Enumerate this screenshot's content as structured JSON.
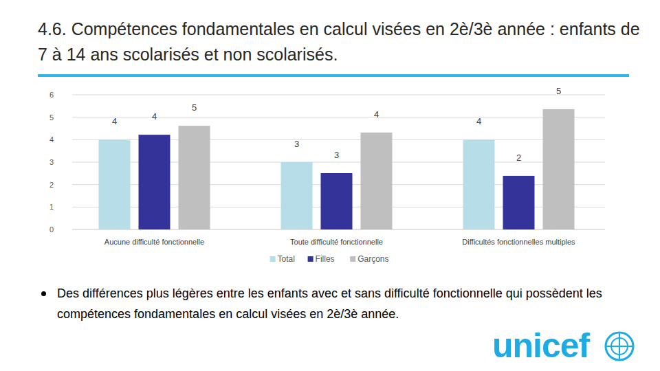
{
  "chart_data": {
    "type": "bar",
    "title": "4.6. Compétences fondamentales en calcul visées en 2è/3è année : enfants de 7 à 14 ans scolarisés et non scolarisés.",
    "categories": [
      "Aucune difficulté fonctionnelle",
      "Toute difficulté fonctionnelle",
      "Difficultés fonctionnelles multiples"
    ],
    "series": [
      {
        "name": "Total",
        "color": "#b7dee8",
        "values": [
          4.0,
          3.0,
          4.0
        ],
        "value_labels": [
          "4",
          "3",
          "4"
        ]
      },
      {
        "name": "Filles",
        "color": "#333399",
        "values": [
          4.22,
          2.51,
          2.39
        ],
        "value_labels": [
          "4",
          "3",
          "2"
        ]
      },
      {
        "name": "Garçons",
        "color": "#bfbfbf",
        "values": [
          4.62,
          4.32,
          5.36
        ],
        "value_labels": [
          "5",
          "4",
          "5"
        ]
      }
    ],
    "ylim": [
      0,
      6
    ],
    "yticks": [
      0,
      1,
      2,
      3,
      4,
      5,
      6
    ],
    "grid": true,
    "legend": "bottom",
    "data_labels": true
  },
  "bullet": "Des différences plus légères entre les enfants avec et sans difficulté fonctionnelle qui possèdent les compétences fondamentales en calcul visées en 2è/3è année.",
  "logo": "unicef"
}
